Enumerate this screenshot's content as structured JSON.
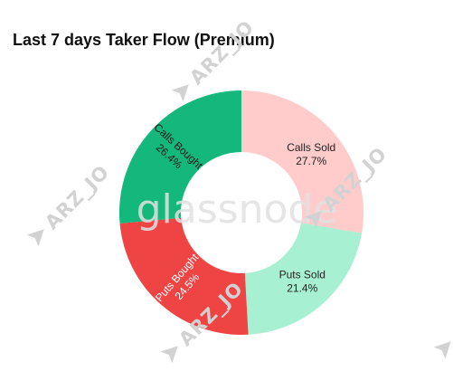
{
  "title": "Last 7 days Taker Flow (Premium)",
  "chart_data": {
    "type": "pie",
    "style": "donut",
    "categories": [
      "Calls Sold",
      "Puts Sold",
      "Puts Bought",
      "Calls Bought"
    ],
    "values": [
      27.7,
      21.4,
      24.5,
      26.4
    ],
    "unit": "%",
    "labels": [
      "27.7%",
      "21.4%",
      "24.5%",
      "26.4%"
    ],
    "colors": [
      "#ffcccb",
      "#a8f0d2",
      "#ef4444",
      "#14b87c"
    ],
    "label_colors": [
      "#222222",
      "#222222",
      "#ffffff",
      "#1a1a1a"
    ],
    "start": "12 o'clock",
    "direction": "clockwise",
    "legend": "none"
  },
  "watermarks": {
    "brand_logo": "glassnode",
    "brand_logo_icon": "glassnode-logo-icon",
    "repeat_text": "ARZ_JO",
    "repeat_icon": "paper-plane-icon"
  }
}
